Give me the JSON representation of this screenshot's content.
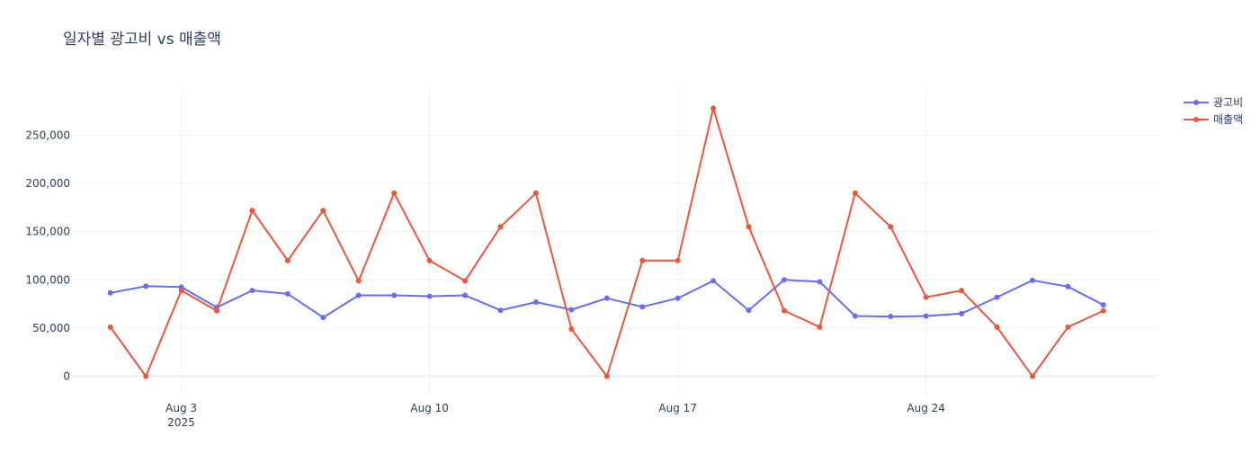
{
  "chart_data": {
    "type": "line",
    "title": "일자별 광고비 vs 매출액",
    "xlabel": "",
    "ylabel": "",
    "x": [
      "2025-08-01",
      "2025-08-02",
      "2025-08-03",
      "2025-08-04",
      "2025-08-05",
      "2025-08-06",
      "2025-08-07",
      "2025-08-08",
      "2025-08-09",
      "2025-08-10",
      "2025-08-11",
      "2025-08-12",
      "2025-08-13",
      "2025-08-14",
      "2025-08-15",
      "2025-08-16",
      "2025-08-17",
      "2025-08-18",
      "2025-08-19",
      "2025-08-20",
      "2025-08-21",
      "2025-08-22",
      "2025-08-23",
      "2025-08-24",
      "2025-08-25",
      "2025-08-26",
      "2025-08-27",
      "2025-08-28",
      "2025-08-29"
    ],
    "series": [
      {
        "name": "광고비",
        "color": "#636efa",
        "values": [
          86500,
          93500,
          92500,
          71500,
          89000,
          85500,
          61000,
          84000,
          84000,
          83000,
          84000,
          68500,
          77000,
          69000,
          81000,
          72000,
          81000,
          99000,
          68500,
          100000,
          98000,
          62500,
          62000,
          62500,
          65000,
          82000,
          99500,
          93000,
          74000
        ]
      },
      {
        "name": "매출액",
        "color": "#ef553b",
        "values": [
          51000,
          0,
          89000,
          68000,
          172000,
          120000,
          172000,
          99000,
          190000,
          120000,
          99000,
          155000,
          190000,
          49000,
          0,
          120000,
          120000,
          278000,
          155000,
          68000,
          51000,
          190000,
          155000,
          82000,
          89000,
          51000,
          0,
          51000,
          68000
        ]
      }
    ],
    "x_ticks": [
      {
        "date": "2025-08-03",
        "label": "Aug 3",
        "sublabel": "2025"
      },
      {
        "date": "2025-08-10",
        "label": "Aug 10",
        "sublabel": ""
      },
      {
        "date": "2025-08-17",
        "label": "Aug 17",
        "sublabel": ""
      },
      {
        "date": "2025-08-24",
        "label": "Aug 24",
        "sublabel": ""
      }
    ],
    "y_ticks": [
      {
        "value": 0,
        "label": "0"
      },
      {
        "value": 50000,
        "label": "50,000"
      },
      {
        "value": 100000,
        "label": "100,000"
      },
      {
        "value": 150000,
        "label": "150,000"
      },
      {
        "value": 200000,
        "label": "200,000"
      },
      {
        "value": 250000,
        "label": "250,000"
      }
    ],
    "xlim": [
      "2025-07-30T22:00",
      "2025-08-30T12:00"
    ],
    "ylim": [
      -20000,
      297000
    ],
    "grid": true,
    "legend_position": "top-right"
  }
}
